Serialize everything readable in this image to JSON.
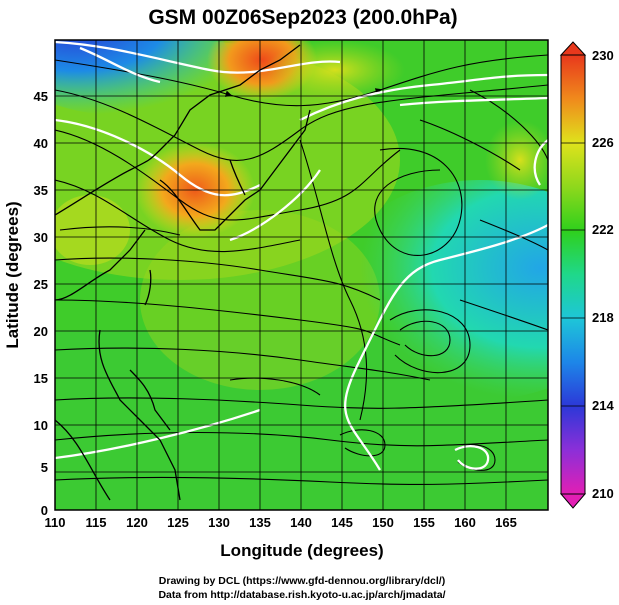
{
  "title": "GSM 00Z06Sep2023 (200.0hPa)",
  "x_axis": {
    "label": "Longitude (degrees)",
    "ticks": [
      "110",
      "115",
      "120",
      "125",
      "130",
      "135",
      "140",
      "145",
      "150",
      "155",
      "160",
      "165"
    ],
    "range": [
      110,
      170
    ]
  },
  "y_axis": {
    "label": "Latitude  (degrees)",
    "ticks": [
      "0",
      "5",
      "10",
      "15",
      "20",
      "25",
      "30",
      "35",
      "40",
      "45"
    ],
    "range": [
      0,
      50
    ]
  },
  "colorbar": {
    "ticks": [
      "210",
      "214",
      "218",
      "222",
      "226",
      "230"
    ],
    "range": [
      210,
      230
    ]
  },
  "credits": {
    "line1": "Drawing by DCL (https://www.gfd-dennou.org/library/dcl/)",
    "line2": "Data from http://database.rish.kyoto-u.ac.jp/arch/jmadata/"
  }
}
